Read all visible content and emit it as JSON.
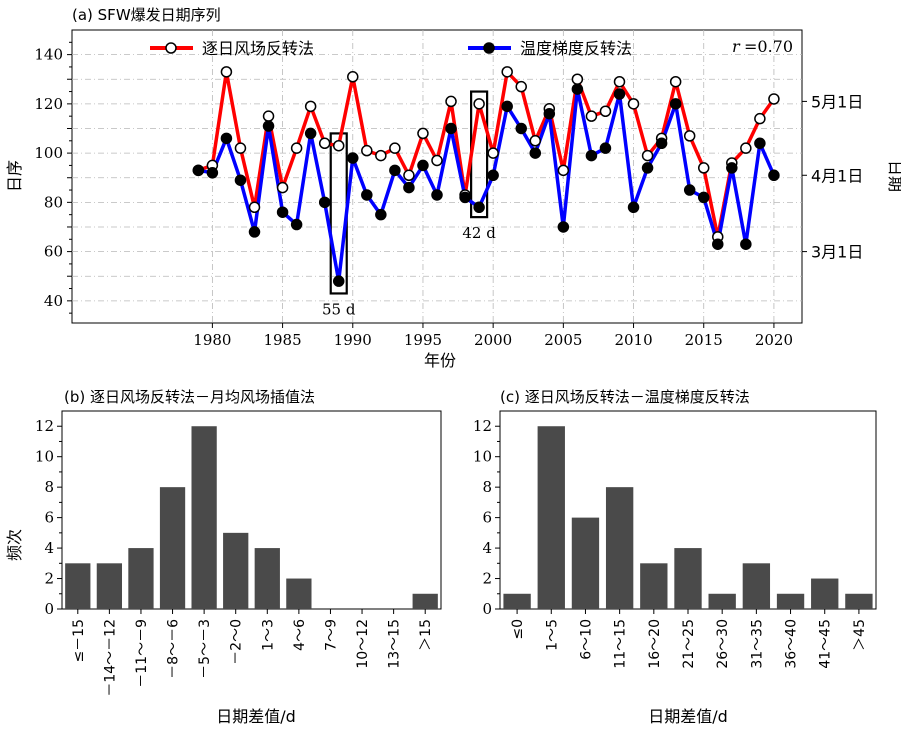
{
  "chart_data": [
    {
      "type": "line",
      "title": "(a) SFW爆发日期序列",
      "xlabel": "年份",
      "ylabel": "日序",
      "y2label": "日期",
      "xlim": [
        1970,
        2022
      ],
      "ylim": [
        31,
        150
      ],
      "xticks": [
        1980,
        1985,
        1990,
        1995,
        2000,
        2005,
        2010,
        2015,
        2020
      ],
      "yticks": [
        40,
        60,
        80,
        100,
        120,
        140
      ],
      "y2ticks": [
        {
          "value": 60,
          "label": "3月1日"
        },
        {
          "value": 91,
          "label": "4月1日"
        },
        {
          "value": 121,
          "label": "5月1日"
        }
      ],
      "grid": true,
      "legend_position": "top",
      "correlation_label": "r",
      "correlation_value": "=0.70",
      "x": [
        1979,
        1980,
        1981,
        1982,
        1983,
        1984,
        1985,
        1986,
        1987,
        1988,
        1989,
        1990,
        1991,
        1992,
        1993,
        1994,
        1995,
        1996,
        1997,
        1998,
        1999,
        2000,
        2001,
        2002,
        2003,
        2004,
        2005,
        2006,
        2007,
        2008,
        2009,
        2010,
        2011,
        2012,
        2013,
        2014,
        2015,
        2016,
        2017,
        2018,
        2019,
        2020
      ],
      "series": [
        {
          "name": "逐日风场反转法",
          "color": "#ff0000",
          "marker": "open-circle",
          "values": [
            93,
            95,
            133,
            102,
            78,
            115,
            86,
            102,
            119,
            104,
            103,
            131,
            101,
            99,
            102,
            91,
            108,
            97,
            121,
            83,
            120,
            100,
            133,
            127,
            105,
            118,
            93,
            130,
            115,
            117,
            129,
            120,
            99,
            106,
            129,
            107,
            94,
            66,
            96,
            102,
            114,
            122
          ]
        },
        {
          "name": "温度梯度反转法",
          "color": "#0000ff",
          "marker": "filled-circle",
          "values": [
            93,
            92,
            106,
            89,
            68,
            111,
            76,
            71,
            108,
            80,
            48,
            98,
            83,
            75,
            93,
            86,
            95,
            83,
            110,
            82,
            78,
            91,
            119,
            110,
            100,
            116,
            70,
            126,
            99,
            102,
            124,
            78,
            94,
            104,
            120,
            85,
            82,
            63,
            94,
            63,
            104,
            91
          ]
        }
      ],
      "annotations": [
        {
          "year": 1989,
          "box": [
            43,
            108
          ],
          "label": "55 d"
        },
        {
          "year": 1999,
          "box": [
            74,
            125
          ],
          "label": "42 d"
        }
      ]
    },
    {
      "type": "bar",
      "title": "(b) 逐日风场反转法－月均风场插值法",
      "xlabel": "日期差值/d",
      "ylabel": "频次",
      "ylim": [
        0,
        13
      ],
      "yticks": [
        0,
        2,
        4,
        6,
        8,
        10,
        12
      ],
      "bar_color": "#4a4a4a",
      "categories": [
        "≤－15",
        "－14～－12",
        "－11～－9",
        "－8～－6",
        "－5～－3",
        "－2～0",
        "1～3",
        "4～6",
        "7～9",
        "10～12",
        "13～15",
        "＞15"
      ],
      "values": [
        3,
        3,
        4,
        8,
        12,
        5,
        4,
        2,
        0,
        0,
        0,
        1
      ]
    },
    {
      "type": "bar",
      "title": "(c) 逐日风场反转法－温度梯度反转法",
      "xlabel": "日期差值/d",
      "ylabel": "",
      "ylim": [
        0,
        13
      ],
      "yticks": [
        0,
        2,
        4,
        6,
        8,
        10,
        12
      ],
      "bar_color": "#4a4a4a",
      "categories": [
        "≤0",
        "1～5",
        "6～10",
        "11～15",
        "16～20",
        "21～25",
        "26～30",
        "31～35",
        "36～40",
        "41～45",
        "＞45"
      ],
      "values": [
        1,
        12,
        6,
        8,
        3,
        4,
        1,
        3,
        1,
        2,
        1
      ]
    }
  ]
}
